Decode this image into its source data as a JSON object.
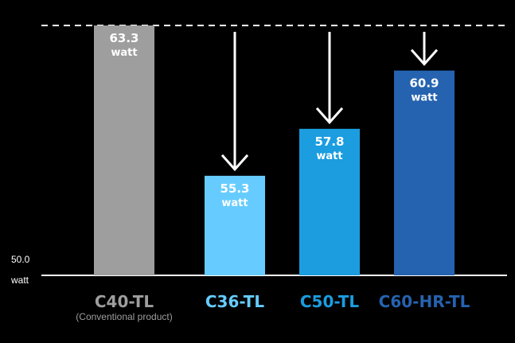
{
  "chart_data": {
    "type": "bar",
    "categories": [
      "C40-TL",
      "C36-TL",
      "C50-TL",
      "C60-HR-TL"
    ],
    "category_sublabels": [
      "(Conventional product)",
      "",
      "",
      ""
    ],
    "values": [
      63.3,
      55.3,
      57.8,
      60.9
    ],
    "value_labels": [
      "63.3",
      "55.3",
      "57.8",
      "60.9"
    ],
    "unit_label": "watt",
    "baseline": {
      "value": 50.0,
      "label": "50.0",
      "unit": "watt"
    },
    "reference_line": {
      "value": 63.3,
      "style": "dashed"
    },
    "arrows": [
      false,
      true,
      true,
      true
    ],
    "colors": {
      "bars": [
        "#9e9e9e",
        "#66ccff",
        "#1b9de0",
        "#2563b0"
      ],
      "labels": [
        "#9e9e9e",
        "#66ccff",
        "#1b9de0",
        "#2563b0"
      ],
      "background": "#000000",
      "text": "#ffffff"
    },
    "title": "",
    "xlabel": "",
    "ylabel": "",
    "ylim": [
      50.0,
      63.3
    ],
    "grid": false,
    "legend": "none"
  }
}
